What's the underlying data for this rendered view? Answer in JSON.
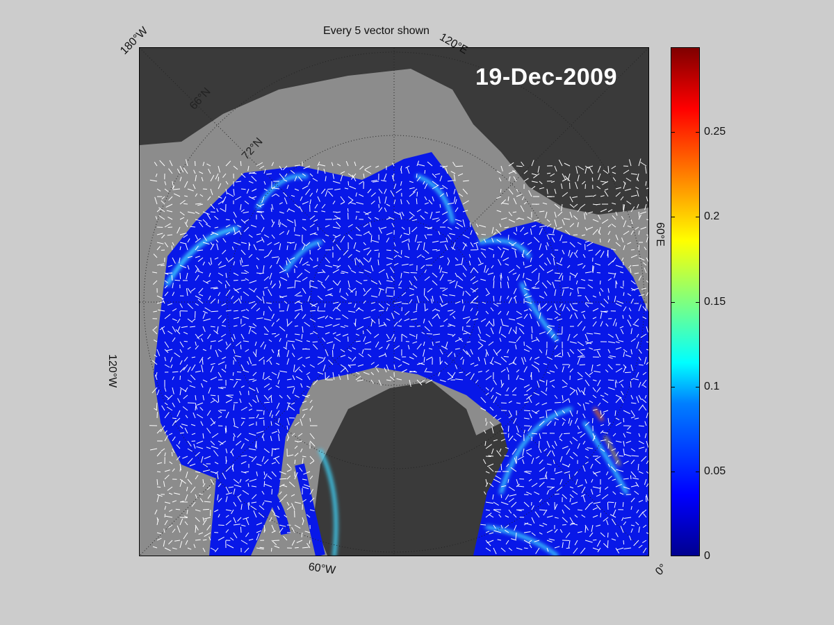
{
  "title": "Every 5 vector shown",
  "date_stamp": "19-Dec-2009",
  "map": {
    "projection": "polar-stereographic",
    "region": "Arctic Ocean",
    "parallels_labels": [
      "66°N",
      "72°N"
    ],
    "meridian_labels": [
      "180°W",
      "120°E",
      "60°E",
      "0°",
      "60°W",
      "120°W"
    ],
    "colors": {
      "land": "#3a3a3a",
      "ice_mask": "#8c8c8c",
      "ocean_low": "#0010e0",
      "vectors": "#ffffff"
    }
  },
  "colorbar": {
    "colormap": "jet",
    "range": [
      0,
      0.3
    ],
    "ticks": [
      "0",
      "0.05",
      "0.1",
      "0.15",
      "0.2",
      "0.25"
    ],
    "tick_values": [
      0,
      0.05,
      0.1,
      0.15,
      0.2,
      0.25
    ]
  }
}
